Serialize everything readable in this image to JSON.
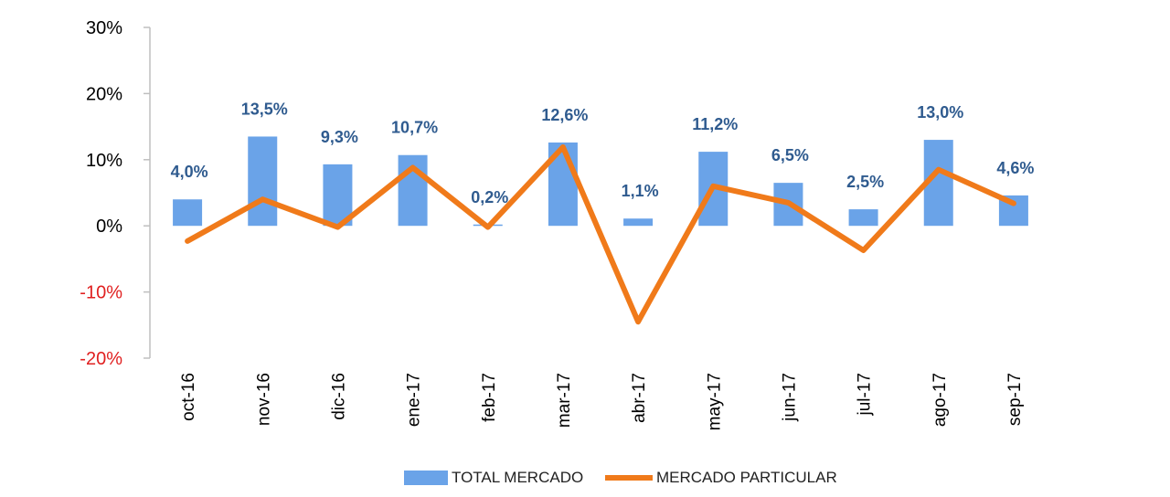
{
  "chart_data": {
    "type": "bar",
    "title": "",
    "xlabel": "",
    "ylabel": "",
    "categories": [
      "oct-16",
      "nov-16",
      "dic-16",
      "ene-17",
      "feb-17",
      "mar-17",
      "abr-17",
      "may-17",
      "jun-17",
      "jul-17",
      "ago-17",
      "sep-17"
    ],
    "ylim": [
      -20,
      30
    ],
    "yticks": [
      {
        "value": 30,
        "label": "30%"
      },
      {
        "value": 20,
        "label": "20%"
      },
      {
        "value": 10,
        "label": "10%"
      },
      {
        "value": 0,
        "label": "0%"
      },
      {
        "value": -10,
        "label": "-10%"
      },
      {
        "value": -20,
        "label": "-20%"
      }
    ],
    "grid": false,
    "legend_position": "bottom",
    "series": [
      {
        "name": "TOTAL MERCADO",
        "kind": "bar",
        "color": "#6aa3e8",
        "values": [
          4.0,
          13.5,
          9.3,
          10.7,
          0.2,
          12.6,
          1.1,
          11.2,
          6.5,
          2.5,
          13.0,
          4.6
        ],
        "value_labels": [
          "4,0%",
          "13,5%",
          "9,3%",
          "10,7%",
          "0,2%",
          "12,6%",
          "1,1%",
          "11,2%",
          "6,5%",
          "2,5%",
          "13,0%",
          "4,6%"
        ]
      },
      {
        "name": "MERCADO PARTICULAR",
        "kind": "line",
        "color": "#f07a1a",
        "values": [
          -2.3,
          4.0,
          -0.2,
          8.8,
          -0.2,
          11.9,
          -14.5,
          6.0,
          3.5,
          -3.7,
          8.5,
          3.4
        ]
      }
    ],
    "colors": {
      "positive_tick": "#000000",
      "negative_tick": "#e02020",
      "label": "#2f5b8f",
      "axis": "#bfbfbf"
    }
  }
}
